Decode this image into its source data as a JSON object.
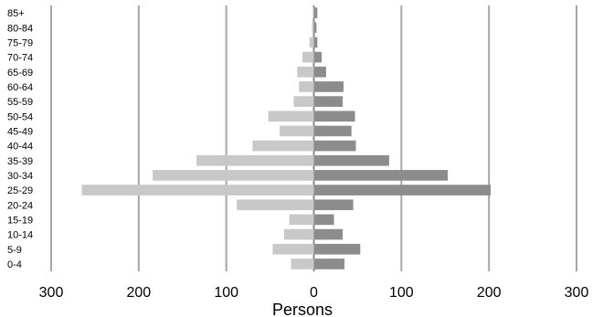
{
  "chart_data": {
    "type": "bar",
    "orientation": "horizontal",
    "subtype": "population-pyramid",
    "title": "",
    "xlabel": "Persons",
    "ylabel": "",
    "xlim": [
      -300,
      300
    ],
    "grid": true,
    "legend": "none",
    "xtick_values": [
      -300,
      -200,
      -100,
      0,
      100,
      200,
      300
    ],
    "xtick_labels": [
      "300",
      "200",
      "100",
      "0",
      "100",
      "200",
      "300"
    ],
    "categories": [
      "85+",
      "80-84",
      "75-79",
      "70-74",
      "65-69",
      "60-64",
      "55-59",
      "50-54",
      "45-49",
      "40-44",
      "35-39",
      "30-34",
      "25-29",
      "20-24",
      "15-19",
      "10-14",
      "5-9",
      "0-4"
    ],
    "series": [
      {
        "color": "#c8c8c8",
        "values": [
          1,
          2,
          5,
          13,
          19,
          17,
          23,
          52,
          39,
          70,
          134,
          184,
          265,
          88,
          28,
          34,
          47,
          26
        ]
      },
      {
        "color": "#8c8c8c",
        "values": [
          4,
          3,
          4,
          9,
          14,
          34,
          33,
          47,
          43,
          48,
          86,
          153,
          202,
          45,
          23,
          33,
          53,
          35
        ]
      }
    ]
  }
}
